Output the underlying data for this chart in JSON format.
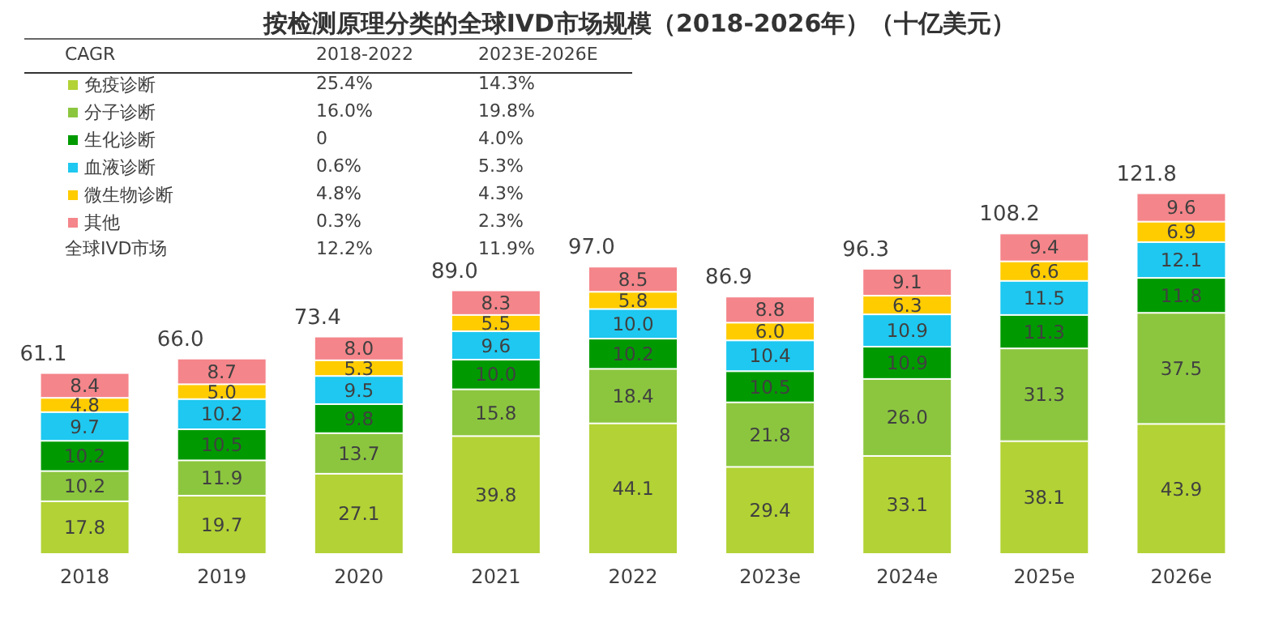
{
  "chart_data": {
    "type": "bar",
    "stacked": true,
    "title": "按检测原理分类的全球IVD市场规模（2018-2026年）（十亿美元）",
    "categories": [
      "2018",
      "2019",
      "2020",
      "2021",
      "2022",
      "2023e",
      "2024e",
      "2025e",
      "2026e"
    ],
    "series": [
      {
        "name": "免疫诊断",
        "color": "#b2d235",
        "values": [
          17.8,
          19.7,
          27.1,
          39.8,
          44.1,
          29.4,
          33.1,
          38.1,
          43.9
        ],
        "value_labels": [
          "17.8",
          "19.7",
          "27.1",
          "39.8",
          "44.1",
          "29.4",
          "33.1",
          "38.1",
          "43.9"
        ]
      },
      {
        "name": "分子诊断",
        "color": "#8cc63f",
        "values": [
          10.2,
          11.9,
          13.7,
          15.8,
          18.4,
          21.8,
          26.0,
          31.3,
          37.5
        ],
        "value_labels": [
          "10.2",
          "11.9",
          "13.7",
          "15.8",
          "18.4",
          "21.8",
          "26.0",
          "31.3",
          "37.5"
        ]
      },
      {
        "name": "生化诊断",
        "color": "#009a00",
        "values": [
          10.2,
          10.5,
          9.8,
          10.0,
          10.2,
          10.5,
          10.9,
          11.3,
          11.8
        ],
        "value_labels": [
          "10.2",
          "10.5",
          "9.8",
          "10.0",
          "10.2",
          "10.5",
          "10.9",
          "11.3",
          "11.8"
        ]
      },
      {
        "name": "血液诊断",
        "color": "#1ec8f0",
        "values": [
          9.7,
          10.2,
          9.5,
          9.6,
          10.0,
          10.4,
          10.9,
          11.5,
          12.1
        ],
        "value_labels": [
          "9.7",
          "10.2",
          "9.5",
          "9.6",
          "10.0",
          "10.4",
          "10.9",
          "11.5",
          "12.1"
        ]
      },
      {
        "name": "微生物诊断",
        "color": "#ffcc00",
        "values": [
          4.8,
          5.0,
          5.3,
          5.5,
          5.8,
          6.0,
          6.3,
          6.6,
          6.9
        ],
        "value_labels": [
          "4.8",
          "5.0",
          "5.3",
          "5.5",
          "5.8",
          "6.0",
          "6.3",
          "6.6",
          "6.9"
        ]
      },
      {
        "name": "其他",
        "color": "#f4858a",
        "values": [
          8.4,
          8.7,
          8.0,
          8.3,
          8.5,
          8.8,
          9.1,
          9.4,
          9.6
        ],
        "value_labels": [
          "8.4",
          "8.7",
          "8.0",
          "8.3",
          "8.5",
          "8.8",
          "9.1",
          "9.4",
          "9.6"
        ]
      }
    ],
    "totals": [
      "61.1",
      "66.0",
      "73.4",
      "89.0",
      "97.0",
      "86.9",
      "96.3",
      "108.2",
      "121.8"
    ],
    "legend": "top left",
    "annotations": [
      "CAGR",
      "2018-2022",
      "2023E-2026E",
      "25.4%",
      "14.3%",
      "16.0%",
      "19.8%",
      "0",
      "4.0%",
      "0.6%",
      "5.3%",
      "4.8%",
      "4.3%",
      "0.3%",
      "2.3%",
      "全球IVD市场",
      "12.2%",
      "11.9%"
    ]
  }
}
